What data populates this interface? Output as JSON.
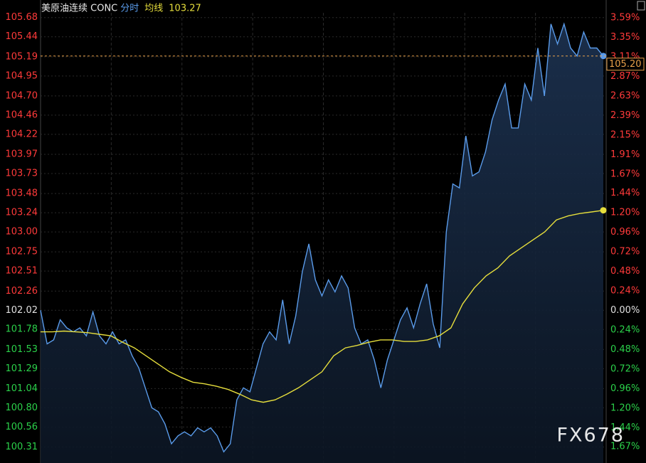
{
  "chart_data": {
    "type": "line",
    "title": "美原油连续 CONC",
    "watermark": "FX678",
    "series": [
      {
        "name": "分时",
        "color": "#5a9bea",
        "values": [
          102.02,
          101.6,
          101.65,
          101.9,
          101.8,
          101.75,
          101.8,
          101.7,
          102.0,
          101.7,
          101.6,
          101.75,
          101.6,
          101.65,
          101.45,
          101.3,
          101.05,
          100.8,
          100.75,
          100.6,
          100.35,
          100.45,
          100.5,
          100.45,
          100.55,
          100.5,
          100.55,
          100.45,
          100.25,
          100.35,
          100.9,
          101.05,
          101.0,
          101.3,
          101.6,
          101.75,
          101.65,
          102.15,
          101.6,
          101.95,
          102.5,
          102.85,
          102.4,
          102.2,
          102.4,
          102.25,
          102.45,
          102.3,
          101.8,
          101.6,
          101.65,
          101.4,
          101.05,
          101.4,
          101.65,
          101.9,
          102.05,
          101.8,
          102.1,
          102.35,
          101.85,
          101.55,
          103.0,
          103.6,
          103.55,
          104.2,
          103.7,
          103.75,
          104.0,
          104.4,
          104.65,
          104.85,
          104.3,
          104.3,
          104.85,
          104.65,
          105.3,
          104.7,
          105.6,
          105.35,
          105.6,
          105.3,
          105.2,
          105.5,
          105.3,
          105.3,
          105.2
        ]
      },
      {
        "name": "均线",
        "color": "#e6de3c",
        "legend_value": 103.27,
        "values": [
          101.75,
          101.75,
          101.76,
          101.75,
          101.74,
          101.72,
          101.7,
          101.62,
          101.55,
          101.45,
          101.35,
          101.25,
          101.18,
          101.12,
          101.1,
          101.07,
          101.03,
          100.97,
          100.9,
          100.87,
          100.9,
          100.97,
          101.05,
          101.15,
          101.25,
          101.45,
          101.55,
          101.58,
          101.62,
          101.65,
          101.65,
          101.63,
          101.63,
          101.65,
          101.7,
          101.8,
          102.1,
          102.3,
          102.45,
          102.55,
          102.7,
          102.8,
          102.9,
          103.0,
          103.15,
          103.2,
          103.23,
          103.25,
          103.27
        ]
      }
    ],
    "last_price": {
      "value": 105.2,
      "label": "105.20"
    },
    "ylim": [
      100.11,
      105.74
    ],
    "yticks": [
      105.68,
      105.44,
      105.19,
      104.95,
      {
        "value": 104.7,
        "label": "104.70"
      },
      104.46,
      104.22,
      103.97,
      103.73,
      103.48,
      103.24,
      {
        "value": 103.0,
        "label": "103.00"
      },
      102.75,
      102.51,
      102.26,
      102.02,
      101.78,
      101.53,
      101.29,
      101.04,
      {
        "value": 100.8,
        "label": "100.80"
      },
      100.56,
      100.31
    ],
    "y2lim": [
      -1.87,
      3.65
    ],
    "y2ticks": [
      {
        "value": 3.59,
        "label": "3.59%"
      },
      {
        "value": 3.35,
        "label": "3.35%"
      },
      {
        "value": 3.11,
        "label": "3.11%"
      },
      {
        "value": 2.87,
        "label": "2.87%"
      },
      {
        "value": 2.63,
        "label": "2.63%"
      },
      {
        "value": 2.39,
        "label": "2.39%"
      },
      {
        "value": 2.15,
        "label": "2.15%"
      },
      {
        "value": 1.91,
        "label": "1.91%"
      },
      {
        "value": 1.67,
        "label": "1.67%"
      },
      {
        "value": 1.44,
        "label": "1.44%"
      },
      {
        "value": 1.2,
        "label": "1.20%"
      },
      {
        "value": 0.96,
        "label": "0.96%"
      },
      {
        "value": 0.72,
        "label": "0.72%"
      },
      {
        "value": 0.48,
        "label": "0.48%"
      },
      {
        "value": 0.24,
        "label": "0.24%"
      },
      {
        "value": 0,
        "label": "0.00%"
      },
      {
        "value": -0.24,
        "label": "0.24%"
      },
      {
        "value": -0.48,
        "label": "0.48%"
      },
      {
        "value": -0.72,
        "label": "0.72%"
      },
      {
        "value": -0.96,
        "label": "0.96%"
      },
      {
        "value": -1.2,
        "label": "1.20%"
      },
      {
        "value": -1.44,
        "label": "1.44%"
      },
      {
        "value": -1.67,
        "label": "1.67%"
      }
    ],
    "base_price": 102.02,
    "grid": true
  }
}
